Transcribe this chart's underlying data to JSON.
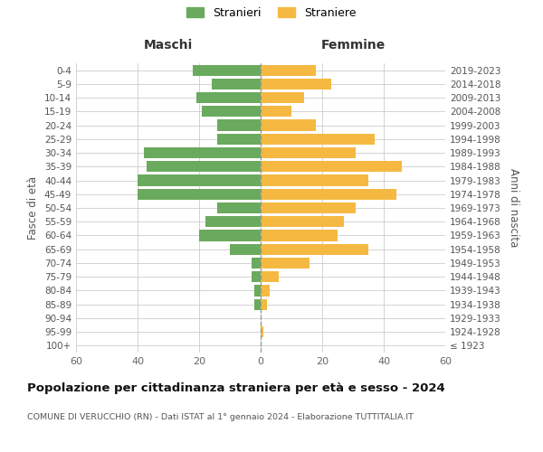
{
  "age_groups": [
    "100+",
    "95-99",
    "90-94",
    "85-89",
    "80-84",
    "75-79",
    "70-74",
    "65-69",
    "60-64",
    "55-59",
    "50-54",
    "45-49",
    "40-44",
    "35-39",
    "30-34",
    "25-29",
    "20-24",
    "15-19",
    "10-14",
    "5-9",
    "0-4"
  ],
  "birth_years": [
    "≤ 1923",
    "1924-1928",
    "1929-1933",
    "1934-1938",
    "1939-1943",
    "1944-1948",
    "1949-1953",
    "1954-1958",
    "1959-1963",
    "1964-1968",
    "1969-1973",
    "1974-1978",
    "1979-1983",
    "1984-1988",
    "1989-1993",
    "1994-1998",
    "1999-2003",
    "2004-2008",
    "2009-2013",
    "2014-2018",
    "2019-2023"
  ],
  "maschi": [
    0,
    0,
    0,
    2,
    2,
    3,
    3,
    10,
    20,
    18,
    14,
    40,
    40,
    37,
    38,
    14,
    14,
    19,
    21,
    16,
    22
  ],
  "femmine": [
    0,
    1,
    0,
    2,
    3,
    6,
    16,
    35,
    25,
    27,
    31,
    44,
    35,
    46,
    31,
    37,
    18,
    10,
    14,
    23,
    18
  ],
  "maschi_color": "#6aaa5e",
  "femmine_color": "#f5b942",
  "background_color": "#ffffff",
  "grid_color": "#cccccc",
  "title": "Popolazione per cittadinanza straniera per età e sesso - 2024",
  "subtitle": "COMUNE DI VERUCCHIO (RN) - Dati ISTAT al 1° gennaio 2024 - Elaborazione TUTTITALIA.IT",
  "xlabel_left": "Maschi",
  "xlabel_right": "Femmine",
  "ylabel_left": "Fasce di età",
  "ylabel_right": "Anni di nascita",
  "legend_maschi": "Stranieri",
  "legend_femmine": "Straniere",
  "xlim": 60,
  "bar_height": 0.8
}
